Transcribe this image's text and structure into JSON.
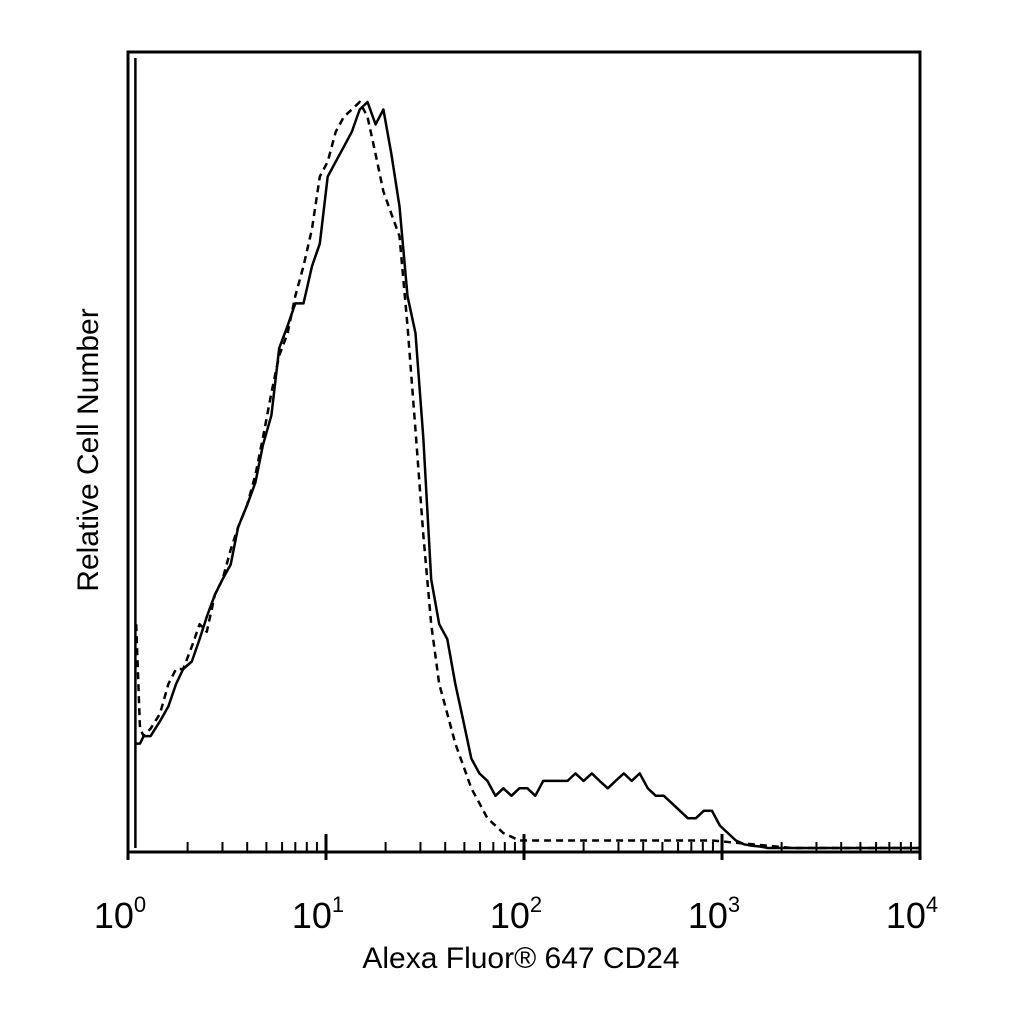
{
  "chart_data": {
    "type": "line",
    "title": "",
    "xlabel": "Alexa Fluor® 647 CD24",
    "ylabel": "Relative Cell Number",
    "xscale": "log",
    "xlim": [
      1,
      10000
    ],
    "ylim": [
      0,
      1
    ],
    "grid": false,
    "legend": "none",
    "x_ticks": [
      {
        "base": "10",
        "exp": "0",
        "value": 1
      },
      {
        "base": "10",
        "exp": "1",
        "value": 10
      },
      {
        "base": "10",
        "exp": "2",
        "value": 100
      },
      {
        "base": "10",
        "exp": "3",
        "value": 1000
      },
      {
        "base": "10",
        "exp": "4",
        "value": 10000
      }
    ],
    "series": [
      {
        "style": "solid",
        "color": "#000000",
        "x": [
          1.09,
          1.1,
          1.15,
          1.2,
          1.3,
          1.45,
          1.6,
          1.75,
          1.9,
          2.1,
          2.3,
          2.5,
          2.75,
          3.0,
          3.3,
          3.6,
          4.0,
          4.4,
          4.8,
          5.3,
          5.8,
          6.4,
          7.0,
          7.7,
          8.5,
          9.3,
          10.2,
          11.2,
          12.3,
          13.5,
          14.8,
          16.2,
          17.8,
          19.5,
          21.4,
          23.5,
          25.8,
          28.3,
          31.0,
          34.0,
          37.3,
          41.0,
          45.0,
          49.4,
          54.2,
          59.5,
          65.3,
          71.7,
          78.7,
          86.4,
          94.8,
          104,
          114,
          125,
          138,
          151,
          166,
          182,
          200,
          220,
          241,
          265,
          290,
          319,
          350,
          384,
          422,
          463,
          508,
          558,
          612,
          672,
          738,
          810,
          889,
          976,
          1071,
          1176,
          1290,
          1417,
          1555,
          1707,
          1874,
          2057,
          2258,
          2478,
          3000,
          4000,
          6000,
          10000
        ],
        "y": [
          1.0,
          0.14,
          0.14,
          0.15,
          0.15,
          0.17,
          0.19,
          0.22,
          0.24,
          0.25,
          0.28,
          0.31,
          0.34,
          0.36,
          0.38,
          0.43,
          0.46,
          0.49,
          0.54,
          0.58,
          0.67,
          0.7,
          0.73,
          0.73,
          0.78,
          0.81,
          0.9,
          0.92,
          0.94,
          0.96,
          0.99,
          1.0,
          0.97,
          0.99,
          0.93,
          0.86,
          0.74,
          0.69,
          0.55,
          0.36,
          0.3,
          0.28,
          0.22,
          0.17,
          0.12,
          0.1,
          0.09,
          0.07,
          0.08,
          0.07,
          0.08,
          0.08,
          0.07,
          0.09,
          0.09,
          0.09,
          0.09,
          0.1,
          0.09,
          0.1,
          0.09,
          0.08,
          0.09,
          0.1,
          0.09,
          0.1,
          0.08,
          0.07,
          0.07,
          0.06,
          0.05,
          0.04,
          0.04,
          0.05,
          0.05,
          0.03,
          0.02,
          0.01,
          0.005,
          0.003,
          0.002,
          0.0,
          0.0,
          0.0,
          0.0,
          0.0,
          0.0,
          0.0,
          0.0,
          0.0
        ]
      },
      {
        "style": "dashed",
        "color": "#000000",
        "x": [
          1.1,
          1.15,
          1.2,
          1.3,
          1.45,
          1.6,
          1.75,
          1.9,
          2.1,
          2.3,
          2.5,
          2.75,
          3.0,
          3.3,
          3.6,
          4.0,
          4.4,
          4.8,
          5.3,
          5.8,
          6.4,
          7.0,
          7.7,
          8.5,
          9.3,
          10.2,
          11.2,
          12.3,
          13.5,
          14.8,
          16.2,
          17.8,
          19.5,
          21.4,
          23.5,
          25.8,
          28.3,
          31.0,
          34.0,
          37.3,
          41.0,
          45.0,
          49.4,
          54.2,
          59.5,
          65.3,
          71.7,
          78.7,
          86.4,
          94.8,
          114,
          151,
          220,
          350,
          558,
          889,
          1417,
          2258,
          4000,
          10000
        ],
        "y": [
          0.3,
          0.16,
          0.15,
          0.16,
          0.18,
          0.22,
          0.24,
          0.24,
          0.27,
          0.3,
          0.29,
          0.34,
          0.36,
          0.4,
          0.43,
          0.46,
          0.5,
          0.55,
          0.61,
          0.66,
          0.69,
          0.74,
          0.78,
          0.83,
          0.9,
          0.92,
          0.96,
          0.98,
          0.99,
          1.0,
          0.98,
          0.93,
          0.88,
          0.85,
          0.82,
          0.7,
          0.56,
          0.42,
          0.3,
          0.22,
          0.18,
          0.14,
          0.11,
          0.08,
          0.06,
          0.04,
          0.03,
          0.02,
          0.015,
          0.01,
          0.01,
          0.01,
          0.01,
          0.01,
          0.01,
          0.01,
          0.005,
          0.0,
          0.0,
          0.0
        ]
      }
    ]
  }
}
